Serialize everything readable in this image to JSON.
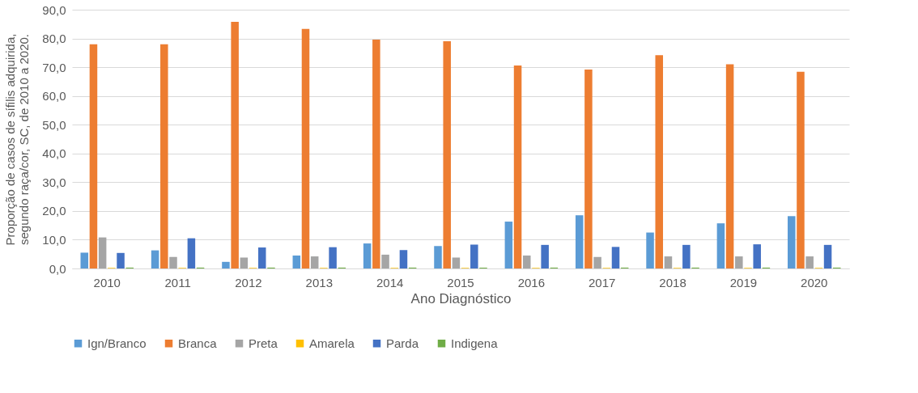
{
  "chart_data": {
    "type": "bar",
    "xlabel": "Ano Diagnóstico",
    "ylabel": [
      "Proporção de casos de sífilis adquirida,",
      "segundo raça/cor, SC, de 2010 a 2020."
    ],
    "categories": [
      "2010",
      "2011",
      "2012",
      "2013",
      "2014",
      "2015",
      "2016",
      "2017",
      "2018",
      "2019",
      "2020"
    ],
    "series": [
      {
        "name": "Ign/Branco",
        "color": "#5b9bd5",
        "values": [
          5.5,
          6.3,
          2.3,
          4.5,
          8.7,
          7.8,
          16.3,
          18.5,
          12.5,
          15.7,
          18.2
        ]
      },
      {
        "name": "Branca",
        "color": "#ed7d31",
        "values": [
          78.0,
          78.0,
          85.8,
          83.3,
          79.6,
          79.0,
          70.6,
          69.2,
          74.2,
          71.0,
          68.4
        ]
      },
      {
        "name": "Preta",
        "color": "#a5a5a5",
        "values": [
          10.8,
          4.0,
          3.8,
          4.2,
          4.8,
          3.8,
          4.5,
          4.0,
          4.2,
          4.2,
          4.2
        ]
      },
      {
        "name": "Amarela",
        "color": "#ffc000",
        "values": [
          0.2,
          0.2,
          0.2,
          0.2,
          0.2,
          0.2,
          0.2,
          0.2,
          0.2,
          0.2,
          0.2
        ]
      },
      {
        "name": "Parda",
        "color": "#4472c4",
        "values": [
          5.4,
          10.5,
          7.3,
          7.4,
          6.4,
          8.3,
          8.2,
          7.5,
          8.2,
          8.4,
          8.2
        ]
      },
      {
        "name": "Indigena",
        "color": "#70ad47",
        "values": [
          0.3,
          0.3,
          0.3,
          0.3,
          0.3,
          0.3,
          0.3,
          0.3,
          0.3,
          0.3,
          0.3
        ]
      }
    ],
    "ylim": [
      0,
      90
    ],
    "yticks": [
      {
        "value": 0,
        "label": "0,0"
      },
      {
        "value": 10,
        "label": "10,0"
      },
      {
        "value": 20,
        "label": "20,0"
      },
      {
        "value": 30,
        "label": "30,0"
      },
      {
        "value": 40,
        "label": "40,0"
      },
      {
        "value": 50,
        "label": "50,0"
      },
      {
        "value": 60,
        "label": "60,0"
      },
      {
        "value": 70,
        "label": "70,0"
      },
      {
        "value": 80,
        "label": "80,0"
      },
      {
        "value": 90,
        "label": "90,0"
      }
    ],
    "grid": "y",
    "legend": "bottom"
  }
}
